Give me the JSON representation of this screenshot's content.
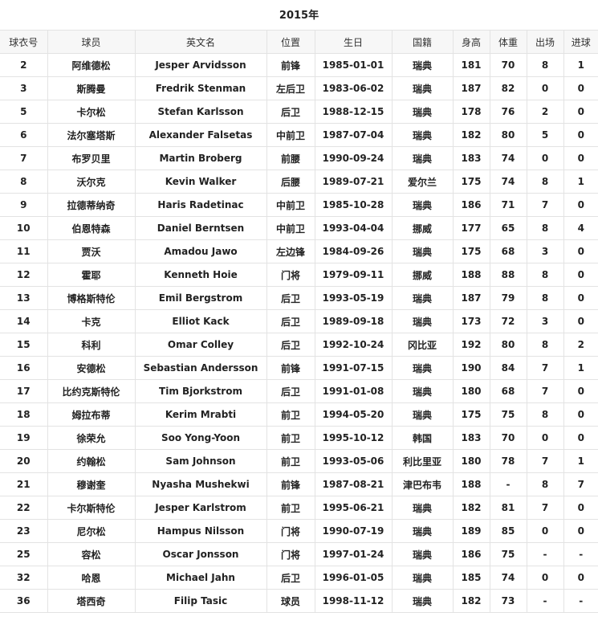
{
  "title": "2015年",
  "columns": [
    "球衣号",
    "球员",
    "英文名",
    "位置",
    "生日",
    "国籍",
    "身高",
    "体重",
    "出场",
    "进球"
  ],
  "rows": [
    [
      "2",
      "阿维德松",
      "Jesper Arvidsson",
      "前锋",
      "1985-01-01",
      "瑞典",
      "181",
      "70",
      "8",
      "1"
    ],
    [
      "3",
      "斯腾曼",
      "Fredrik Stenman",
      "左后卫",
      "1983-06-02",
      "瑞典",
      "187",
      "82",
      "0",
      "0"
    ],
    [
      "5",
      "卡尔松",
      "Stefan Karlsson",
      "后卫",
      "1988-12-15",
      "瑞典",
      "178",
      "76",
      "2",
      "0"
    ],
    [
      "6",
      "法尔塞塔斯",
      "Alexander Falsetas",
      "中前卫",
      "1987-07-04",
      "瑞典",
      "182",
      "80",
      "5",
      "0"
    ],
    [
      "7",
      "布罗贝里",
      "Martin Broberg",
      "前腰",
      "1990-09-24",
      "瑞典",
      "183",
      "74",
      "0",
      "0"
    ],
    [
      "8",
      "沃尔克",
      "Kevin Walker",
      "后腰",
      "1989-07-21",
      "爱尔兰",
      "175",
      "74",
      "8",
      "1"
    ],
    [
      "9",
      "拉德蒂纳奇",
      "Haris Radetinac",
      "中前卫",
      "1985-10-28",
      "瑞典",
      "186",
      "71",
      "7",
      "0"
    ],
    [
      "10",
      "伯恩特森",
      "Daniel Berntsen",
      "中前卫",
      "1993-04-04",
      "挪威",
      "177",
      "65",
      "8",
      "4"
    ],
    [
      "11",
      "贾沃",
      "Amadou Jawo",
      "左边锋",
      "1984-09-26",
      "瑞典",
      "175",
      "68",
      "3",
      "0"
    ],
    [
      "12",
      "霍耶",
      "Kenneth Hoie",
      "门将",
      "1979-09-11",
      "挪威",
      "188",
      "88",
      "8",
      "0"
    ],
    [
      "13",
      "博格斯特伦",
      "Emil Bergstrom",
      "后卫",
      "1993-05-19",
      "瑞典",
      "187",
      "79",
      "8",
      "0"
    ],
    [
      "14",
      "卡克",
      "Elliot Kack",
      "后卫",
      "1989-09-18",
      "瑞典",
      "173",
      "72",
      "3",
      "0"
    ],
    [
      "15",
      "科利",
      "Omar Colley",
      "后卫",
      "1992-10-24",
      "冈比亚",
      "192",
      "80",
      "8",
      "2"
    ],
    [
      "16",
      "安德松",
      "Sebastian Andersson",
      "前锋",
      "1991-07-15",
      "瑞典",
      "190",
      "84",
      "7",
      "1"
    ],
    [
      "17",
      "比约克斯特伦",
      "Tim Bjorkstrom",
      "后卫",
      "1991-01-08",
      "瑞典",
      "180",
      "68",
      "7",
      "0"
    ],
    [
      "18",
      "姆拉布蒂",
      "Kerim Mrabti",
      "前卫",
      "1994-05-20",
      "瑞典",
      "175",
      "75",
      "8",
      "0"
    ],
    [
      "19",
      "徐荣允",
      "Soo Yong-Yoon",
      "前卫",
      "1995-10-12",
      "韩国",
      "183",
      "70",
      "0",
      "0"
    ],
    [
      "20",
      "约翰松",
      "Sam Johnson",
      "前卫",
      "1993-05-06",
      "利比里亚",
      "180",
      "78",
      "7",
      "1"
    ],
    [
      "21",
      "穆谢奎",
      "Nyasha Mushekwi",
      "前锋",
      "1987-08-21",
      "津巴布韦",
      "188",
      "-",
      "8",
      "7"
    ],
    [
      "22",
      "卡尔斯特伦",
      "Jesper Karlstrom",
      "前卫",
      "1995-06-21",
      "瑞典",
      "182",
      "81",
      "7",
      "0"
    ],
    [
      "23",
      "尼尔松",
      "Hampus Nilsson",
      "门将",
      "1990-07-19",
      "瑞典",
      "189",
      "85",
      "0",
      "0"
    ],
    [
      "25",
      "容松",
      "Oscar Jonsson",
      "门将",
      "1997-01-24",
      "瑞典",
      "186",
      "75",
      "-",
      "-"
    ],
    [
      "32",
      "哈恩",
      "Michael Jahn",
      "后卫",
      "1996-01-05",
      "瑞典",
      "185",
      "74",
      "0",
      "0"
    ],
    [
      "36",
      "塔西奇",
      "Filip Tasic",
      "球员",
      "1998-11-12",
      "瑞典",
      "182",
      "73",
      "-",
      "-"
    ]
  ]
}
